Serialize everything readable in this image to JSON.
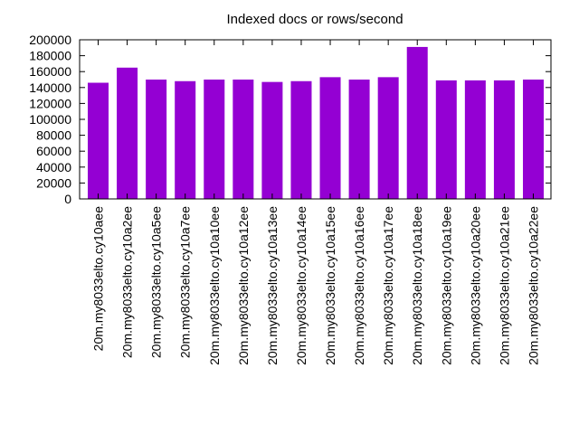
{
  "chart_data": {
    "type": "bar",
    "title": "Indexed docs or rows/second",
    "xlabel": "",
    "ylabel": "",
    "ylim": [
      0,
      200000
    ],
    "yticks": [
      0,
      20000,
      40000,
      60000,
      80000,
      100000,
      120000,
      140000,
      160000,
      180000,
      200000
    ],
    "categories": [
      "20m.my8033",
      "20m.my8033",
      "20m.my8033",
      "20m.my8033",
      "20m.my8033",
      "20m.my8033",
      "20m.my8033",
      "20m.my8033",
      "20m.my8033",
      "20m.my8033",
      "20m.my8033",
      "20m.my8033",
      "20m.my8033",
      "20m.my8033",
      "20m.my8033",
      "20m.my8033"
    ],
    "category_suffixes": [
      "elto.cy10aee",
      "elto.cy10a2ee",
      "elto.cy10a5ee",
      "elto.cy10a7ee",
      "elto.cy10a10ee",
      "elto.cy10a12ee",
      "elto.cy10a13ee",
      "elto.cy10a14ee",
      "elto.cy10a15ee",
      "elto.cy10a16ee",
      "elto.cy10a17ee",
      "elto.cy10a18ee",
      "elto.cy10a19ee",
      "elto.cy10a20ee",
      "elto.cy10a21ee",
      "elto.cy10a22ee"
    ],
    "values": [
      146000,
      165000,
      150000,
      148000,
      150000,
      150000,
      147000,
      148000,
      153000,
      150000,
      153000,
      191000,
      149000,
      149000,
      149000,
      150000
    ],
    "bar_color": "#9400d3",
    "grid": false,
    "legend": "none"
  }
}
